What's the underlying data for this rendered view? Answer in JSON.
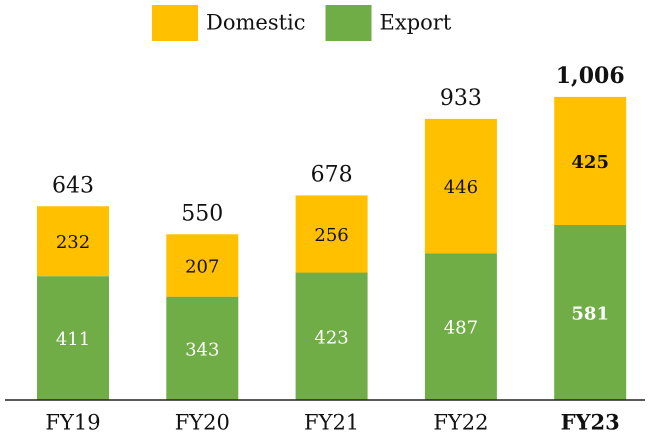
{
  "chart_data": {
    "type": "stacked_bar",
    "categories": [
      "FY19",
      "FY20",
      "FY21",
      "FY22",
      "FY23"
    ],
    "series": [
      {
        "name": "Export",
        "color": "#70ad47",
        "label_color": "#ffffff",
        "values": [
          411,
          343,
          423,
          487,
          581
        ]
      },
      {
        "name": "Domestic",
        "color": "#ffc000",
        "label_color": "#111111",
        "values": [
          232,
          207,
          256,
          446,
          425
        ]
      }
    ],
    "totals": {
      "values": [
        643,
        550,
        678,
        933,
        1006
      ],
      "value_labels": [
        "643",
        "550",
        "678",
        "933",
        "1,006"
      ]
    },
    "bold_categories": [
      4
    ],
    "legend": "top"
  }
}
